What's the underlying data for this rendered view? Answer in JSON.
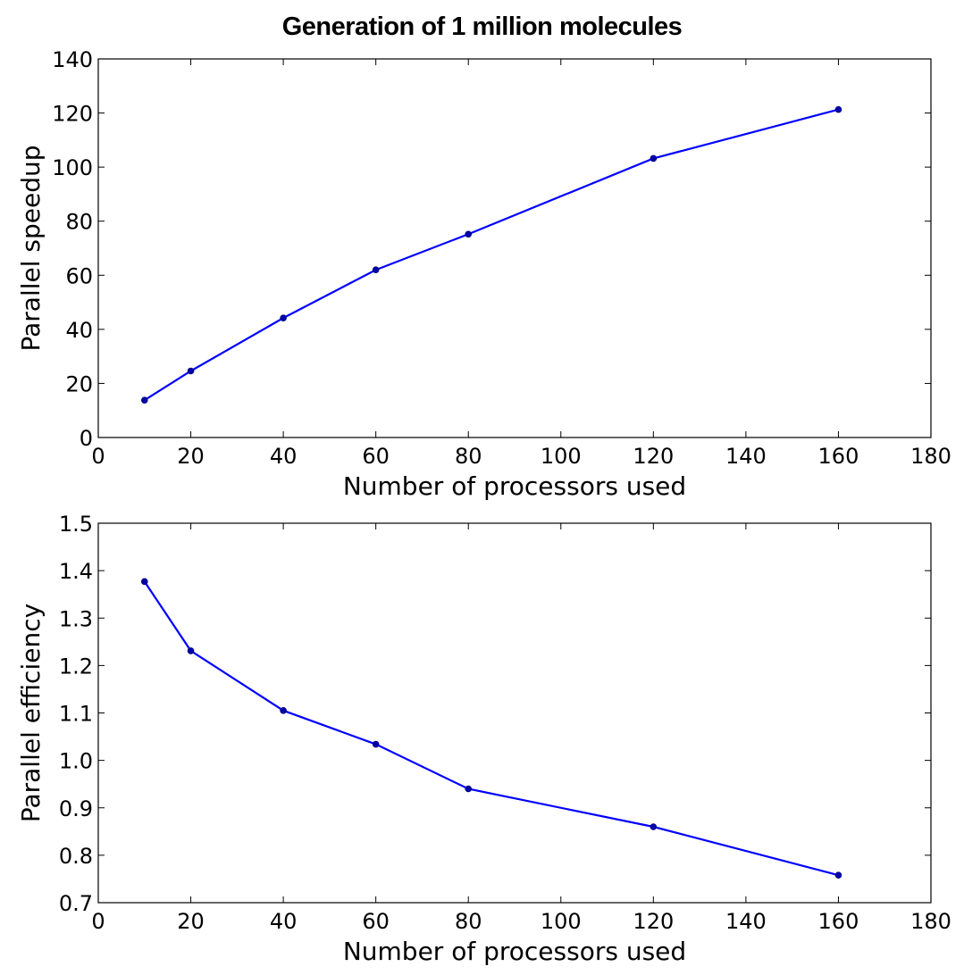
{
  "title": "Generation of 1 million molecules",
  "chart_data": [
    {
      "type": "line",
      "xlabel": "Number of processors used",
      "ylabel": "Parallel speedup",
      "xlim": [
        0,
        180
      ],
      "ylim": [
        0,
        140
      ],
      "xticks": [
        0,
        20,
        40,
        60,
        80,
        100,
        120,
        140,
        160,
        180
      ],
      "yticks": [
        0,
        20,
        40,
        60,
        80,
        100,
        120,
        140
      ],
      "ytick_decimals": 0,
      "grid": false,
      "color": "#0000ff",
      "x": [
        10,
        20,
        40,
        60,
        80,
        120,
        160
      ],
      "y": [
        13.8,
        24.6,
        44.2,
        62.0,
        75.2,
        103.2,
        121.3
      ]
    },
    {
      "type": "line",
      "xlabel": "Number of processors used",
      "ylabel": "Parallel efficiency",
      "xlim": [
        0,
        180
      ],
      "ylim": [
        0.7,
        1.5
      ],
      "xticks": [
        0,
        20,
        40,
        60,
        80,
        100,
        120,
        140,
        160,
        180
      ],
      "yticks": [
        0.7,
        0.8,
        0.9,
        1.0,
        1.1,
        1.2,
        1.3,
        1.4,
        1.5
      ],
      "ytick_decimals": 1,
      "grid": false,
      "color": "#0000ff",
      "x": [
        10,
        20,
        40,
        60,
        80,
        120,
        160
      ],
      "y": [
        1.377,
        1.231,
        1.105,
        1.034,
        0.94,
        0.86,
        0.758
      ]
    }
  ]
}
